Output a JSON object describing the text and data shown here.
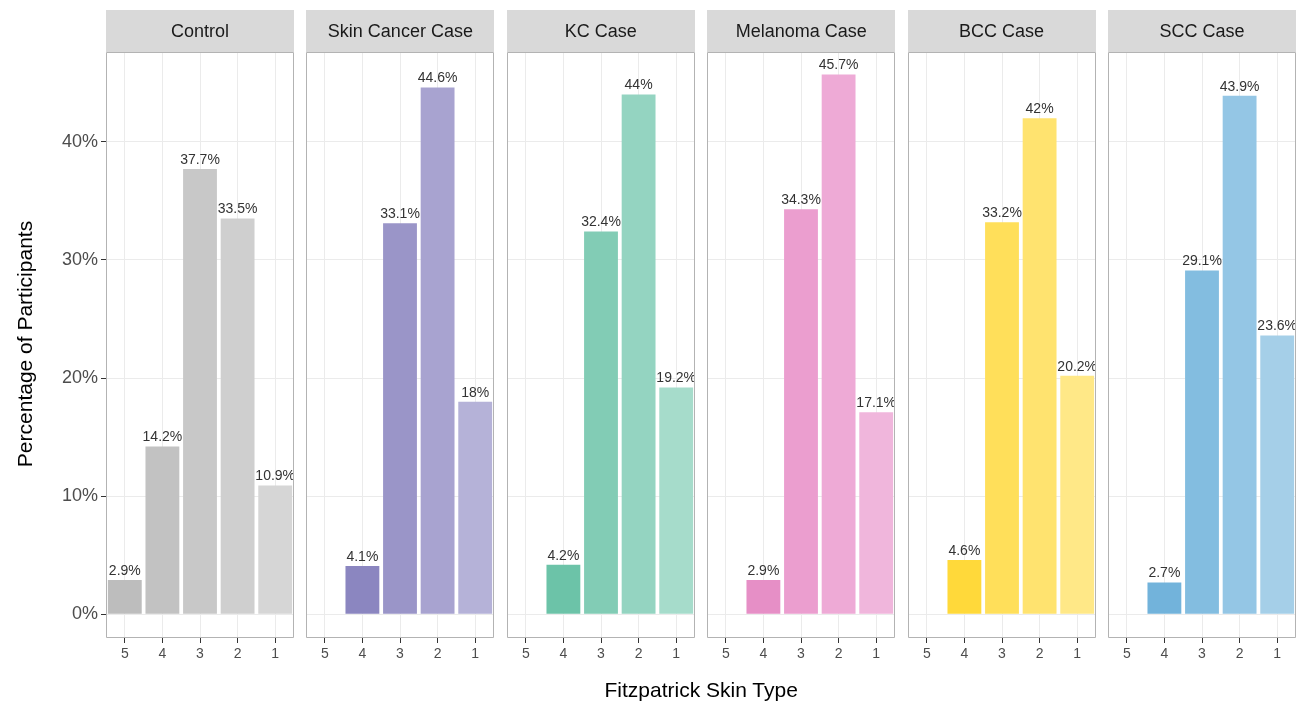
{
  "chart_data": [
    {
      "type": "bar",
      "title": "Control",
      "ylabel": "Percentage of Participants",
      "categories": [
        "5",
        "4",
        "3",
        "2",
        "1"
      ],
      "values": [
        2.9,
        14.2,
        37.7,
        33.5,
        10.9
      ],
      "value_labels": [
        "2.9%",
        "14.2%",
        "37.7%",
        "33.5%",
        "10.9%"
      ],
      "colors": [
        "#bdbdbd",
        "#c2c2c2",
        "#c8c8c8",
        "#cfcfcf",
        "#d6d6d6"
      ],
      "ylim": [
        -2.0,
        47.6
      ],
      "yticks": [
        {
          "value": 0,
          "label": "0%"
        },
        {
          "value": 10,
          "label": "10%"
        },
        {
          "value": 20,
          "label": "20%"
        },
        {
          "value": 30,
          "label": "30%"
        },
        {
          "value": 40,
          "label": "40%"
        }
      ],
      "grid": true
    },
    {
      "type": "bar",
      "title": "Skin Cancer Case",
      "categories": [
        "5",
        "4",
        "3",
        "2",
        "1"
      ],
      "values": [
        null,
        4.1,
        33.1,
        44.6,
        18
      ],
      "value_labels": [
        null,
        "4.1%",
        "33.1%",
        "44.6%",
        "18%"
      ],
      "colors": [
        "#8b86c0",
        "#8b86c0",
        "#9a95c8",
        "#a8a3d0",
        "#b5b2d8"
      ],
      "ylim": [
        -2.0,
        47.6
      ],
      "yticks": [
        {
          "value": 0,
          "label": null
        },
        {
          "value": 10,
          "label": null
        },
        {
          "value": 20,
          "label": null
        },
        {
          "value": 30,
          "label": null
        },
        {
          "value": 40,
          "label": null
        }
      ],
      "grid": true,
      "tick_labels": "x"
    },
    {
      "type": "bar",
      "title": "KC Case",
      "xlabel": "Fitzpatrick Skin Type",
      "categories": [
        "5",
        "4",
        "3",
        "2",
        "1"
      ],
      "values": [
        null,
        4.2,
        32.4,
        44,
        19.2
      ],
      "value_labels": [
        null,
        "4.2%",
        "32.4%",
        "44%",
        "19.2%"
      ],
      "colors": [
        "#6cc3a8",
        "#6cc3a8",
        "#82ccb5",
        "#94d4c1",
        "#a6dccb"
      ],
      "ylim": [
        -2.0,
        47.6
      ],
      "yticks": [
        {
          "value": 0,
          "label": null
        },
        {
          "value": 10,
          "label": null
        },
        {
          "value": 20,
          "label": null
        },
        {
          "value": 30,
          "label": null
        },
        {
          "value": 40,
          "label": null
        }
      ],
      "grid": true,
      "tick_labels": "x"
    },
    {
      "type": "bar",
      "title": "Melanoma Case",
      "categories": [
        "5",
        "4",
        "3",
        "2",
        "1"
      ],
      "values": [
        null,
        2.9,
        34.3,
        45.7,
        17.1
      ],
      "value_labels": [
        null,
        "2.9%",
        "34.3%",
        "45.7%",
        "17.1%"
      ],
      "colors": [
        "#e68fc6",
        "#e68fc6",
        "#eb9ecf",
        "#eeaad6",
        "#f0b6dc"
      ],
      "ylim": [
        -2.0,
        47.6
      ],
      "yticks": [
        {
          "value": 0,
          "label": null
        },
        {
          "value": 10,
          "label": null
        },
        {
          "value": 20,
          "label": null
        },
        {
          "value": 30,
          "label": null
        },
        {
          "value": 40,
          "label": null
        }
      ],
      "grid": true,
      "tick_labels": "x"
    },
    {
      "type": "bar",
      "title": "BCC Case",
      "categories": [
        "5",
        "4",
        "3",
        "2",
        "1"
      ],
      "values": [
        null,
        4.6,
        33.2,
        42,
        20.2
      ],
      "value_labels": [
        null,
        "4.6%",
        "33.2%",
        "42%",
        "20.2%"
      ],
      "colors": [
        "#ffd93a",
        "#ffd93a",
        "#ffdf5a",
        "#ffe36f",
        "#ffe887"
      ],
      "ylim": [
        -2.0,
        47.6
      ],
      "yticks": [
        {
          "value": 0,
          "label": null
        },
        {
          "value": 10,
          "label": null
        },
        {
          "value": 20,
          "label": null
        },
        {
          "value": 30,
          "label": null
        },
        {
          "value": 40,
          "label": null
        }
      ],
      "grid": true,
      "tick_labels": "x"
    },
    {
      "type": "bar",
      "title": "SCC Case",
      "categories": [
        "5",
        "4",
        "3",
        "2",
        "1"
      ],
      "values": [
        null,
        2.7,
        29.1,
        43.9,
        23.6
      ],
      "value_labels": [
        null,
        "2.7%",
        "29.1%",
        "43.9%",
        "23.6%"
      ],
      "colors": [
        "#72b3db",
        "#72b3db",
        "#83bde0",
        "#94c6e5",
        "#a5cfe8"
      ],
      "ylim": [
        -2.0,
        47.6
      ],
      "yticks": [
        {
          "value": 0,
          "label": null
        },
        {
          "value": 10,
          "label": null
        },
        {
          "value": 20,
          "label": null
        },
        {
          "value": 30,
          "label": null
        },
        {
          "value": 40,
          "label": null
        }
      ],
      "grid": true,
      "tick_labels": "x"
    }
  ]
}
